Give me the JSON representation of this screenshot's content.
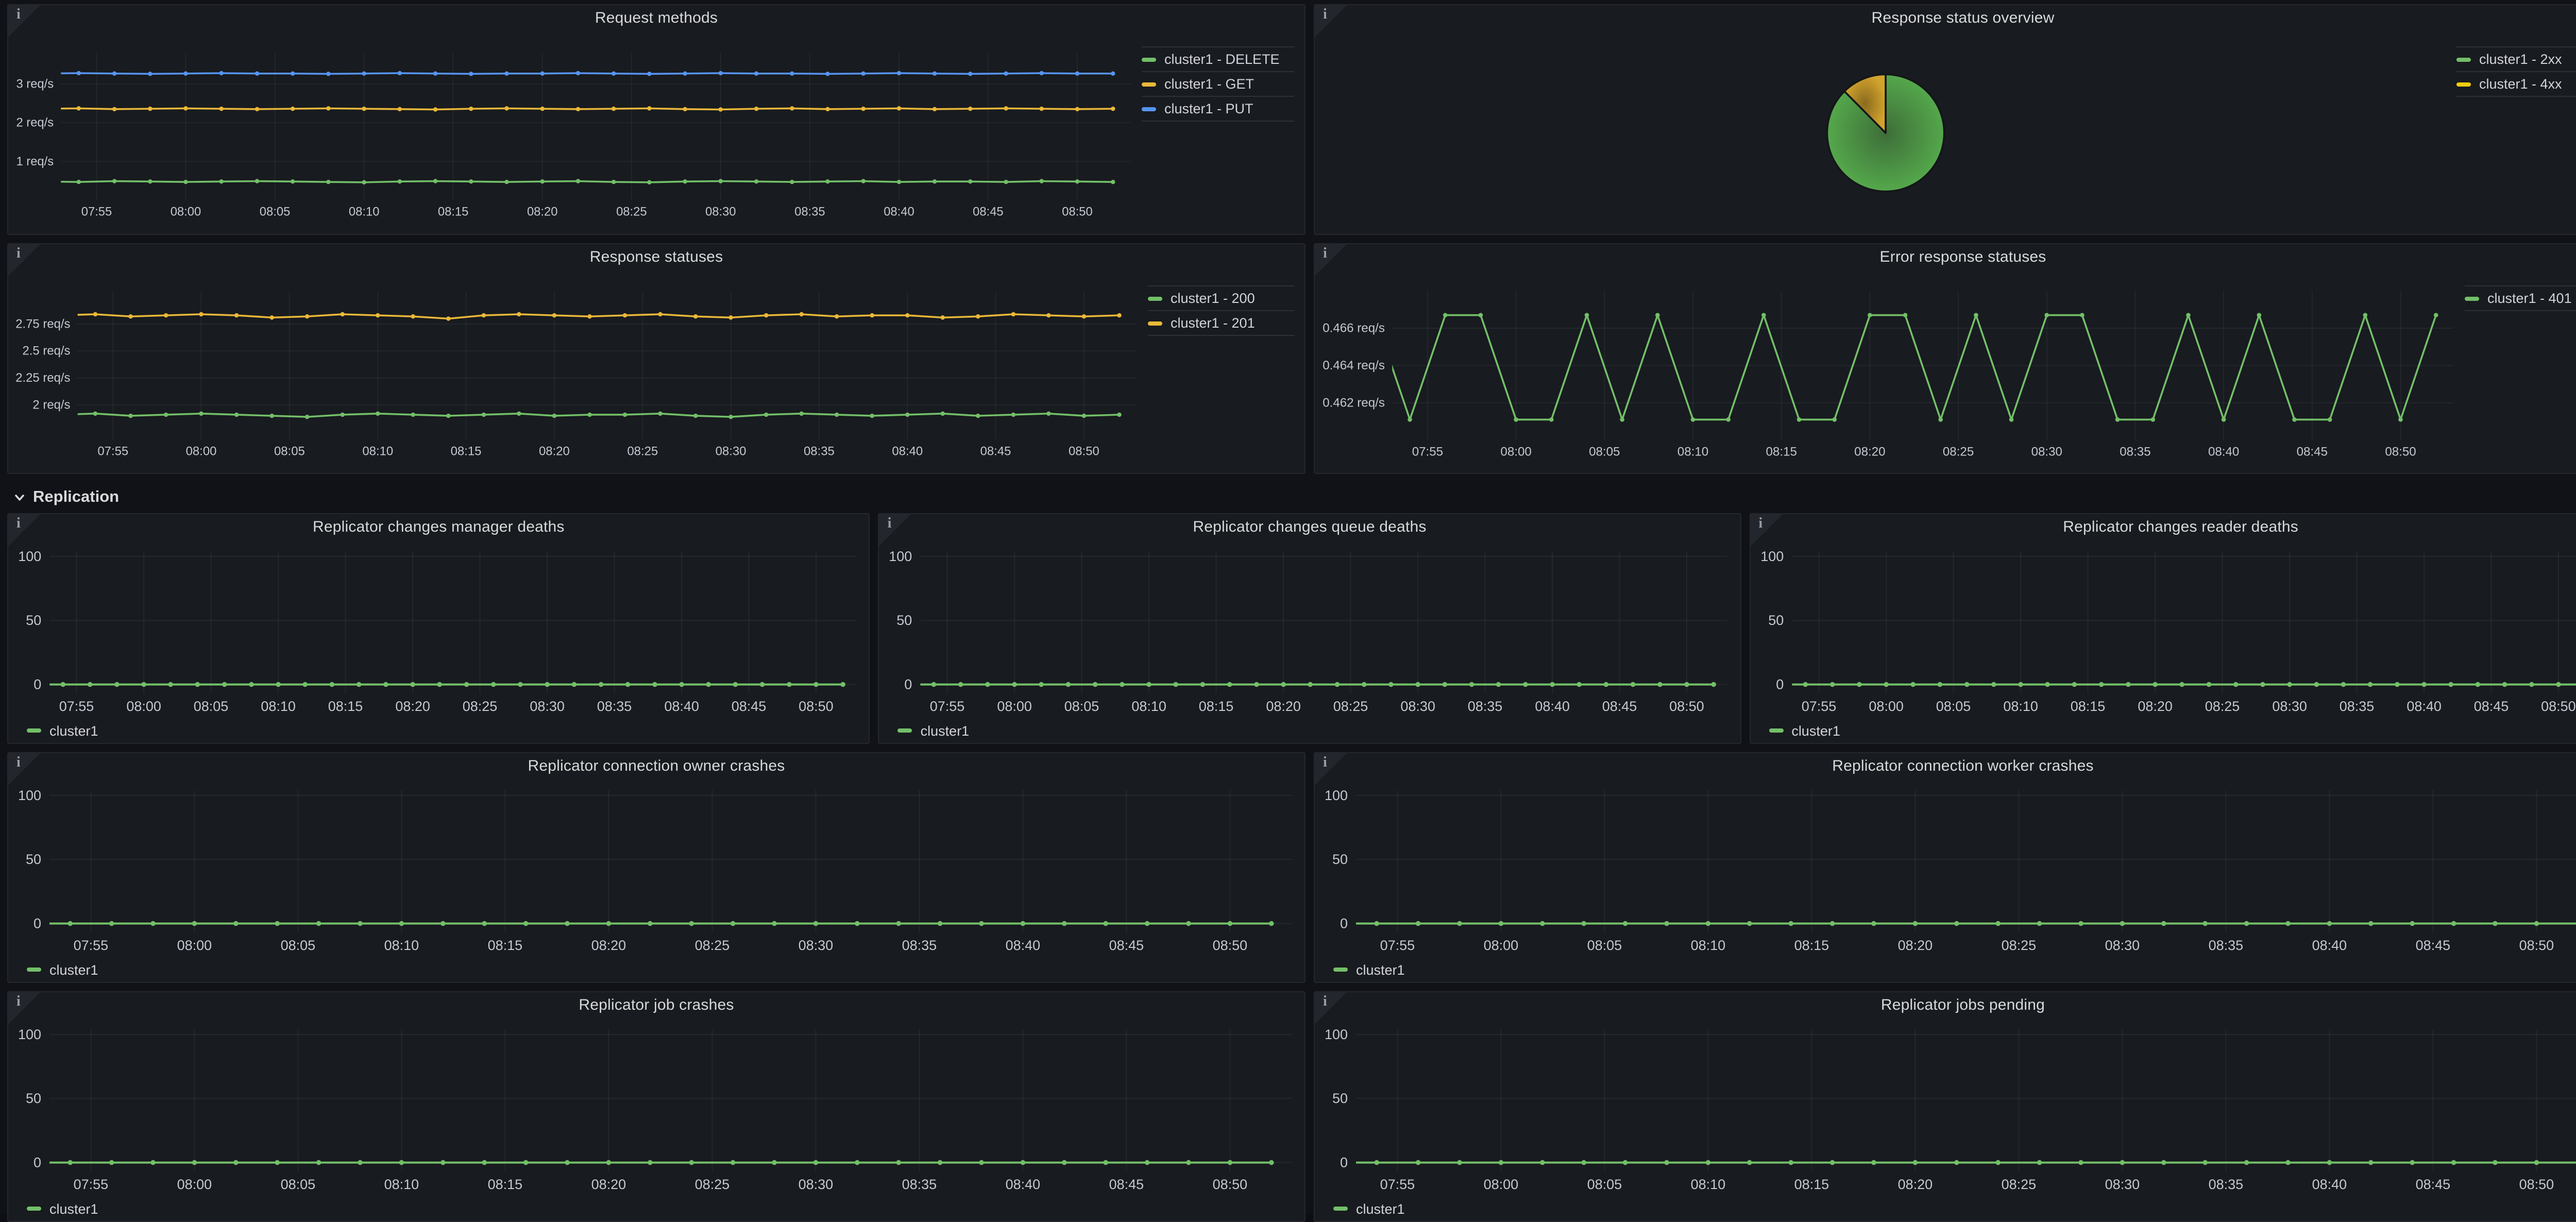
{
  "dashboard": {
    "info_icon_glyph": "i",
    "section": {
      "label": "Replication",
      "icon": "chevron-down"
    }
  },
  "time_axis": {
    "data_start": "07:52",
    "data_step_min": 2,
    "point_count": 31,
    "domain": [
      "07:53",
      "08:53"
    ],
    "ticks": [
      "07:55",
      "08:00",
      "08:05",
      "08:10",
      "08:15",
      "08:20",
      "08:25",
      "08:30",
      "08:35",
      "08:40",
      "08:45",
      "08:50"
    ]
  },
  "colors": {
    "green": "#73BF69",
    "yellow": "#EAB839",
    "bright_yellow": "#F2CC0C",
    "blue": "#5794F2",
    "panel_bg": "#181b1f",
    "page_bg": "#111217",
    "pie_stroke": "#141619"
  },
  "chart_data": [
    {
      "panel": "request_methods",
      "title": "Request methods",
      "type": "line",
      "legend": "right",
      "ylabel_unit": "req/s",
      "y_min": 0,
      "y_max": 3.8,
      "y_ticks": [
        {
          "v": 3,
          "label": "3 req/s"
        },
        {
          "v": 2,
          "label": "2 req/s"
        },
        {
          "v": 1,
          "label": "1 req/s"
        }
      ],
      "series": [
        {
          "name": "cluster1 - DELETE",
          "color": "#73BF69",
          "values": [
            0.48,
            0.47,
            0.49,
            0.48,
            0.47,
            0.48,
            0.49,
            0.48,
            0.47,
            0.46,
            0.48,
            0.49,
            0.48,
            0.47,
            0.48,
            0.49,
            0.47,
            0.46,
            0.48,
            0.49,
            0.48,
            0.47,
            0.48,
            0.49,
            0.47,
            0.48,
            0.48,
            0.47,
            0.49,
            0.48,
            0.47
          ]
        },
        {
          "name": "cluster1 - GET",
          "color": "#EAB839",
          "values": [
            2.36,
            2.37,
            2.35,
            2.36,
            2.37,
            2.36,
            2.35,
            2.36,
            2.37,
            2.36,
            2.35,
            2.34,
            2.36,
            2.37,
            2.36,
            2.35,
            2.36,
            2.37,
            2.35,
            2.34,
            2.36,
            2.37,
            2.35,
            2.36,
            2.37,
            2.35,
            2.36,
            2.37,
            2.36,
            2.35,
            2.36
          ]
        },
        {
          "name": "cluster1 - PUT",
          "color": "#5794F2",
          "values": [
            3.27,
            3.28,
            3.27,
            3.26,
            3.27,
            3.28,
            3.27,
            3.27,
            3.26,
            3.27,
            3.28,
            3.27,
            3.26,
            3.27,
            3.27,
            3.28,
            3.27,
            3.26,
            3.27,
            3.28,
            3.27,
            3.27,
            3.26,
            3.27,
            3.28,
            3.27,
            3.26,
            3.27,
            3.28,
            3.27,
            3.27
          ]
        }
      ]
    },
    {
      "panel": "response_status_overview",
      "title": "Response status overview",
      "type": "pie",
      "legend": "right",
      "slices": [
        {
          "name": "cluster1 - 2xx",
          "color": "#73BF69",
          "percent": 87.6,
          "gradient": {
            "center": "#3e6d39",
            "edge": "#54a84b"
          }
        },
        {
          "name": "cluster1 - 4xx",
          "color": "#F2CC0C",
          "percent": 12.4,
          "gradient": {
            "center": "#8a6a1e",
            "edge": "#d2a32c"
          }
        }
      ]
    },
    {
      "panel": "response_statuses",
      "title": "Response statuses",
      "type": "line",
      "legend": "right",
      "ylabel_unit": "req/s",
      "y_min": 1.68,
      "y_max": 3.05,
      "y_ticks": [
        {
          "v": 2.75,
          "label": "2.75 req/s"
        },
        {
          "v": 2.5,
          "label": "2.5 req/s"
        },
        {
          "v": 2.25,
          "label": "2.25 req/s"
        },
        {
          "v": 2,
          "label": "2 req/s"
        }
      ],
      "series": [
        {
          "name": "cluster1 - 200",
          "color": "#73BF69",
          "values": [
            1.91,
            1.92,
            1.9,
            1.91,
            1.92,
            1.91,
            1.9,
            1.89,
            1.91,
            1.92,
            1.91,
            1.9,
            1.91,
            1.92,
            1.9,
            1.91,
            1.91,
            1.92,
            1.9,
            1.89,
            1.91,
            1.92,
            1.91,
            1.9,
            1.91,
            1.92,
            1.9,
            1.91,
            1.92,
            1.9,
            1.91
          ]
        },
        {
          "name": "cluster1 - 201",
          "color": "#EAB839",
          "values": [
            2.83,
            2.84,
            2.82,
            2.83,
            2.84,
            2.83,
            2.81,
            2.82,
            2.84,
            2.83,
            2.82,
            2.8,
            2.83,
            2.84,
            2.83,
            2.82,
            2.83,
            2.84,
            2.82,
            2.81,
            2.83,
            2.84,
            2.82,
            2.83,
            2.83,
            2.81,
            2.82,
            2.84,
            2.83,
            2.82,
            2.83
          ]
        }
      ]
    },
    {
      "panel": "error_response_statuses",
      "title": "Error response statuses",
      "type": "line",
      "legend": "right",
      "ylabel_unit": "req/s",
      "y_min": 0.46,
      "y_max": 0.468,
      "y_ticks": [
        {
          "v": 0.466,
          "label": "0.466 req/s"
        },
        {
          "v": 0.464,
          "label": "0.464 req/s"
        },
        {
          "v": 0.462,
          "label": "0.462 req/s"
        }
      ],
      "series": [
        {
          "name": "cluster1 - 401",
          "color": "#73BF69",
          "values": [
            0.4667,
            0.4611,
            0.4667,
            0.4667,
            0.4611,
            0.4611,
            0.4667,
            0.4611,
            0.4667,
            0.4611,
            0.4611,
            0.4667,
            0.4611,
            0.4611,
            0.4667,
            0.4667,
            0.4611,
            0.4667,
            0.4611,
            0.4667,
            0.4667,
            0.4611,
            0.4611,
            0.4667,
            0.4611,
            0.4667,
            0.4611,
            0.4611,
            0.4667,
            0.4611,
            0.4667
          ]
        }
      ]
    },
    {
      "panel": "replicator_changes_manager_deaths",
      "title": "Replicator changes manager deaths",
      "type": "line",
      "legend": "bottom",
      "y_min": -7,
      "y_max": 104,
      "y_ticks": [
        {
          "v": 100,
          "label": "100"
        },
        {
          "v": 50,
          "label": "50"
        },
        {
          "v": 0,
          "label": "0"
        }
      ],
      "series": [
        {
          "name": "cluster1",
          "color": "#73BF69",
          "const_value": 0,
          "count": 31
        }
      ]
    },
    {
      "panel": "replicator_changes_queue_deaths",
      "title": "Replicator changes queue deaths",
      "type": "line",
      "legend": "bottom",
      "y_min": -7,
      "y_max": 104,
      "y_ticks": [
        {
          "v": 100,
          "label": "100"
        },
        {
          "v": 50,
          "label": "50"
        },
        {
          "v": 0,
          "label": "0"
        }
      ],
      "series": [
        {
          "name": "cluster1",
          "color": "#73BF69",
          "const_value": 0,
          "count": 31
        }
      ]
    },
    {
      "panel": "replicator_changes_reader_deaths",
      "title": "Replicator changes reader deaths",
      "type": "line",
      "legend": "bottom",
      "y_min": -7,
      "y_max": 104,
      "y_ticks": [
        {
          "v": 100,
          "label": "100"
        },
        {
          "v": 50,
          "label": "50"
        },
        {
          "v": 0,
          "label": "0"
        }
      ],
      "series": [
        {
          "name": "cluster1",
          "color": "#73BF69",
          "const_value": 0,
          "count": 31
        }
      ]
    },
    {
      "panel": "replicator_connection_owner_crashes",
      "title": "Replicator connection owner crashes",
      "type": "line",
      "legend": "bottom",
      "y_min": -7,
      "y_max": 104,
      "y_ticks": [
        {
          "v": 100,
          "label": "100"
        },
        {
          "v": 50,
          "label": "50"
        },
        {
          "v": 0,
          "label": "0"
        }
      ],
      "series": [
        {
          "name": "cluster1",
          "color": "#73BF69",
          "const_value": 0,
          "count": 31
        }
      ]
    },
    {
      "panel": "replicator_connection_worker_crashes",
      "title": "Replicator connection worker crashes",
      "type": "line",
      "legend": "bottom",
      "y_min": -7,
      "y_max": 104,
      "y_ticks": [
        {
          "v": 100,
          "label": "100"
        },
        {
          "v": 50,
          "label": "50"
        },
        {
          "v": 0,
          "label": "0"
        }
      ],
      "series": [
        {
          "name": "cluster1",
          "color": "#73BF69",
          "const_value": 0,
          "count": 31
        }
      ]
    },
    {
      "panel": "replicator_job_crashes",
      "title": "Replicator job crashes",
      "type": "line",
      "legend": "bottom",
      "y_min": -7,
      "y_max": 104,
      "y_ticks": [
        {
          "v": 100,
          "label": "100"
        },
        {
          "v": 50,
          "label": "50"
        },
        {
          "v": 0,
          "label": "0"
        }
      ],
      "series": [
        {
          "name": "cluster1",
          "color": "#73BF69",
          "const_value": 0,
          "count": 31
        }
      ]
    },
    {
      "panel": "replicator_jobs_pending",
      "title": "Replicator jobs pending",
      "type": "line",
      "legend": "bottom",
      "y_min": -7,
      "y_max": 104,
      "y_ticks": [
        {
          "v": 100,
          "label": "100"
        },
        {
          "v": 50,
          "label": "50"
        },
        {
          "v": 0,
          "label": "0"
        }
      ],
      "series": [
        {
          "name": "cluster1",
          "color": "#73BF69",
          "const_value": 0,
          "count": 31
        }
      ]
    }
  ]
}
